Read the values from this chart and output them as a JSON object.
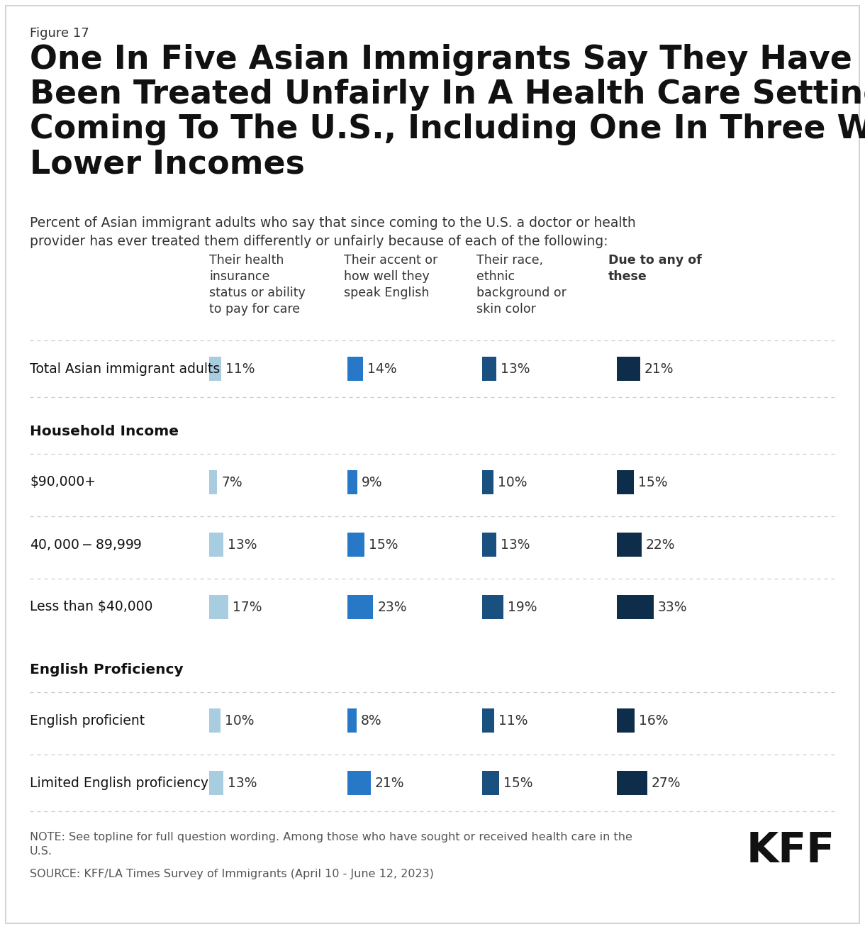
{
  "figure_label": "Figure 17",
  "title": "One In Five Asian Immigrants Say They Have Ever\nBeen Treated Unfairly In A Health Care Setting Since\nComing To The U.S., Including One In Three With\nLower Incomes",
  "subtitle": "Percent of Asian immigrant adults who say that since coming to the U.S. a doctor or health\nprovider has ever treated them differently or unfairly because of each of the following:",
  "col_headers": [
    "Their health\ninsurance\nstatus or ability\nto pay for care",
    "Their accent or\nhow well they\nspeak English",
    "Their race,\nethnic\nbackground or\nskin color",
    "Due to any of\nthese"
  ],
  "rows": [
    {
      "label": "Total Asian immigrant adults",
      "bold": false,
      "header": false,
      "values": [
        11,
        14,
        13,
        21
      ]
    },
    {
      "label": "Household Income",
      "bold": true,
      "header": true,
      "values": null
    },
    {
      "label": "$90,000+",
      "bold": false,
      "header": false,
      "values": [
        7,
        9,
        10,
        15
      ]
    },
    {
      "label": "$40,000-$89,999",
      "bold": false,
      "header": false,
      "values": [
        13,
        15,
        13,
        22
      ]
    },
    {
      "label": "Less than $40,000",
      "bold": false,
      "header": false,
      "values": [
        17,
        23,
        19,
        33
      ]
    },
    {
      "label": "English Proficiency",
      "bold": true,
      "header": true,
      "values": null
    },
    {
      "label": "English proficient",
      "bold": false,
      "header": false,
      "values": [
        10,
        8,
        11,
        16
      ]
    },
    {
      "label": "Limited English proficiency",
      "bold": false,
      "header": false,
      "values": [
        13,
        21,
        15,
        27
      ]
    }
  ],
  "colors": [
    "#a8cce0",
    "#2878c8",
    "#1a5080",
    "#0d2d4a"
  ],
  "note_text": "NOTE: See topline for full question wording. Among those who have sought or received health care in the\nU.S.",
  "source_text": "SOURCE: KFF/LA Times Survey of Immigrants (April 10 - June 12, 2023)"
}
